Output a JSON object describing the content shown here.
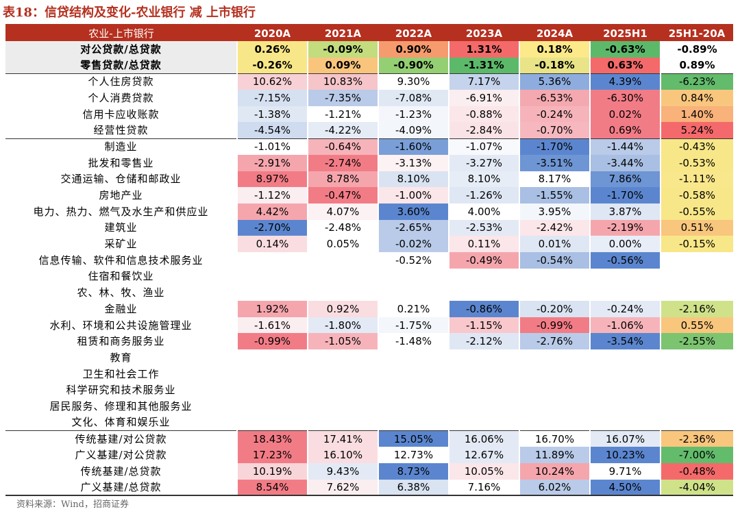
{
  "title": "表18：信贷结构及变化-农业银行 减 上市银行",
  "header": [
    "农业-上市银行",
    "2020A",
    "2021A",
    "2022A",
    "2023A",
    "2024A",
    "2025H1",
    "25H1-20A"
  ],
  "rows": [
    {
      "label": "对公贷款/总贷款",
      "bold": true,
      "gray": true,
      "sep": false,
      "values": [
        "0.26%",
        "-0.09%",
        "0.90%",
        "1.31%",
        "0.18%",
        "-0.63%",
        "-0.89%"
      ],
      "colors": [
        "#f8e788",
        "#c2dc7e",
        "#f69b6e",
        "#f46a6a",
        "#fbe98a",
        "#5db96a",
        "#ffffff"
      ]
    },
    {
      "label": "零售贷款/总贷款",
      "bold": true,
      "gray": true,
      "sep": false,
      "values": [
        "-0.26%",
        "0.09%",
        "-0.90%",
        "-1.31%",
        "-0.18%",
        "0.63%",
        "0.89%"
      ],
      "colors": [
        "#f8e788",
        "#f9c57d",
        "#94cf73",
        "#5db96a",
        "#e8e487",
        "#f46a6a",
        "#ffffff"
      ]
    },
    {
      "label": "个人住房贷款",
      "bold": false,
      "gray": false,
      "sep": true,
      "values": [
        "10.62%",
        "10.83%",
        "9.30%",
        "7.17%",
        "5.36%",
        "4.39%",
        "-6.23%"
      ],
      "colors": [
        "#f7d1d6",
        "#f5c5ca",
        "#ffffff",
        "#c5d4ec",
        "#8eadde",
        "#5b86cf",
        "#63bb6c"
      ]
    },
    {
      "label": "个人消费贷款",
      "bold": false,
      "gray": false,
      "sep": false,
      "values": [
        "-7.15%",
        "-7.35%",
        "-7.08%",
        "-6.91%",
        "-6.53%",
        "-6.30%",
        "0.84%"
      ],
      "colors": [
        "#d5e0f1",
        "#b9cbe8",
        "#e0e8f4",
        "#fbeef0",
        "#f4a9b0",
        "#f27c86",
        "#f9c67e"
      ]
    },
    {
      "label": "信用卡应收账款",
      "bold": false,
      "gray": false,
      "sep": false,
      "values": [
        "-1.38%",
        "-1.21%",
        "-1.23%",
        "-0.88%",
        "-0.24%",
        "0.02%",
        "1.40%"
      ],
      "colors": [
        "#e0e8f4",
        "#ffffff",
        "#f4f6fb",
        "#fbe6e9",
        "#f6b4ba",
        "#f27c86",
        "#f8b27a"
      ]
    },
    {
      "label": "经营性贷款",
      "bold": false,
      "gray": false,
      "sep": false,
      "values": [
        "-4.54%",
        "-4.22%",
        "-4.09%",
        "-2.84%",
        "-0.70%",
        "0.69%",
        "5.24%"
      ],
      "colors": [
        "#cfdbef",
        "#e5ecf6",
        "#f3f6fb",
        "#fae3e6",
        "#f6b8be",
        "#f27c86",
        "#f4696b"
      ]
    },
    {
      "label": "制造业",
      "bold": false,
      "gray": false,
      "sep": true,
      "values": [
        "-1.01%",
        "-0.64%",
        "-1.60%",
        "-1.07%",
        "-1.70%",
        "-1.44%",
        "-0.43%"
      ],
      "colors": [
        "#ffffff",
        "#f6b4ba",
        "#7a9fd8",
        "#f8f9fc",
        "#5b86cf",
        "#b9cbe8",
        "#f8e788"
      ]
    },
    {
      "label": "批发和零售业",
      "bold": false,
      "gray": false,
      "sep": false,
      "values": [
        "-2.91%",
        "-2.74%",
        "-3.13%",
        "-3.27%",
        "-3.51%",
        "-3.44%",
        "-0.53%"
      ],
      "colors": [
        "#f5a6ad",
        "#f27c86",
        "#fcf1f3",
        "#e3eaf5",
        "#6e95d4",
        "#a9bfe3",
        "#f8e788"
      ]
    },
    {
      "label": "交通运输、仓储和邮政业",
      "bold": false,
      "gray": false,
      "sep": false,
      "values": [
        "8.97%",
        "8.78%",
        "8.10%",
        "8.10%",
        "8.17%",
        "7.86%",
        "-1.11%"
      ],
      "colors": [
        "#f27c86",
        "#f5a6ad",
        "#d9e3f2",
        "#e6edf6",
        "#ffffff",
        "#6e95d4",
        "#f9e78c"
      ]
    },
    {
      "label": "房地产业",
      "bold": false,
      "gray": false,
      "sep": false,
      "values": [
        "-1.12%",
        "-0.47%",
        "-1.00%",
        "-1.26%",
        "-1.55%",
        "-1.70%",
        "-0.58%"
      ],
      "colors": [
        "#fbeef0",
        "#f27c86",
        "#fbe6e9",
        "#dfe7f4",
        "#a9bfe3",
        "#5b86cf",
        "#f8e788"
      ]
    },
    {
      "label": "电力、热力、燃气及水生产和供应业",
      "bold": false,
      "gray": false,
      "sep": false,
      "values": [
        "4.42%",
        "4.07%",
        "3.60%",
        "4.00%",
        "3.95%",
        "3.87%",
        "-0.55%"
      ],
      "colors": [
        "#f5a6ad",
        "#fcf1f3",
        "#5b86cf",
        "#ffffff",
        "#f3f6fb",
        "#dfe7f4",
        "#f8e788"
      ]
    },
    {
      "label": "建筑业",
      "bold": false,
      "gray": false,
      "sep": false,
      "values": [
        "-2.70%",
        "-2.48%",
        "-2.65%",
        "-2.53%",
        "-2.42%",
        "-2.19%",
        "0.51%"
      ],
      "colors": [
        "#5b86cf",
        "#ffffff",
        "#b9cbe8",
        "#e3eaf5",
        "#fbe6e9",
        "#f5a6ad",
        "#f9c67e"
      ]
    },
    {
      "label": "采矿业",
      "bold": false,
      "gray": false,
      "sep": false,
      "values": [
        "0.14%",
        "0.05%",
        "-0.02%",
        "0.11%",
        "0.01%",
        "0.00%",
        "-0.15%"
      ],
      "colors": [
        "#f9dde1",
        "#ffffff",
        "#b9cbe8",
        "#fbe6e9",
        "#dfe7f4",
        "#e8eef7",
        "#f8e788"
      ]
    },
    {
      "label": "信息传输、软件和信息技术服务业",
      "bold": false,
      "gray": false,
      "sep": false,
      "values": [
        "",
        "",
        "-0.52%",
        "-0.49%",
        "-0.54%",
        "-0.56%",
        ""
      ],
      "colors": [
        "#ffffff",
        "#ffffff",
        "#ffffff",
        "#f5a6ad",
        "#a9bfe3",
        "#5b86cf",
        "#ffffff"
      ]
    },
    {
      "label": "住宿和餐饮业",
      "bold": false,
      "gray": false,
      "sep": false,
      "values": [
        "",
        "",
        "",
        "",
        "",
        "",
        ""
      ],
      "colors": [
        "#ffffff",
        "#ffffff",
        "#ffffff",
        "#ffffff",
        "#ffffff",
        "#ffffff",
        "#ffffff"
      ]
    },
    {
      "label": "农、林、牧、渔业",
      "bold": false,
      "gray": false,
      "sep": false,
      "values": [
        "",
        "",
        "",
        "",
        "",
        "",
        ""
      ],
      "colors": [
        "#ffffff",
        "#ffffff",
        "#ffffff",
        "#ffffff",
        "#ffffff",
        "#ffffff",
        "#ffffff"
      ]
    },
    {
      "label": "金融业",
      "bold": false,
      "gray": false,
      "sep": false,
      "values": [
        "1.92%",
        "0.92%",
        "0.21%",
        "-0.86%",
        "-0.20%",
        "-0.24%",
        "-2.16%"
      ],
      "colors": [
        "#f5a6ad",
        "#f9dde1",
        "#ffffff",
        "#5b86cf",
        "#d9e3f2",
        "#e3eaf5",
        "#cfe28a"
      ]
    },
    {
      "label": "水利、环境和公共设施管理业",
      "bold": false,
      "gray": false,
      "sep": false,
      "values": [
        "-1.61%",
        "-1.80%",
        "-1.75%",
        "-1.15%",
        "-0.99%",
        "-1.06%",
        "0.55%"
      ],
      "colors": [
        "#fbeef0",
        "#e3eaf5",
        "#f3f6fb",
        "#f9c8cd",
        "#f27c86",
        "#f6b4ba",
        "#f9c67e"
      ]
    },
    {
      "label": "租赁和商务服务业",
      "bold": false,
      "gray": false,
      "sep": false,
      "values": [
        "-0.99%",
        "-1.05%",
        "-1.48%",
        "-2.12%",
        "-2.76%",
        "-3.54%",
        "-2.55%"
      ],
      "colors": [
        "#f27c86",
        "#f6b4ba",
        "#ffffff",
        "#dfe7f4",
        "#b9cbe8",
        "#5b86cf",
        "#7cc470"
      ]
    },
    {
      "label": "教育",
      "bold": false,
      "gray": false,
      "sep": false,
      "values": [
        "",
        "",
        "",
        "",
        "",
        "",
        ""
      ],
      "colors": [
        "#ffffff",
        "#ffffff",
        "#ffffff",
        "#ffffff",
        "#ffffff",
        "#ffffff",
        "#ffffff"
      ]
    },
    {
      "label": "卫生和社会工作",
      "bold": false,
      "gray": false,
      "sep": false,
      "values": [
        "",
        "",
        "",
        "",
        "",
        "",
        ""
      ],
      "colors": [
        "#ffffff",
        "#ffffff",
        "#ffffff",
        "#ffffff",
        "#ffffff",
        "#ffffff",
        "#ffffff"
      ]
    },
    {
      "label": "科学研究和技术服务业",
      "bold": false,
      "gray": false,
      "sep": false,
      "values": [
        "",
        "",
        "",
        "",
        "",
        "",
        ""
      ],
      "colors": [
        "#ffffff",
        "#ffffff",
        "#ffffff",
        "#ffffff",
        "#ffffff",
        "#ffffff",
        "#ffffff"
      ]
    },
    {
      "label": "居民服务、修理和其他服务业",
      "bold": false,
      "gray": false,
      "sep": false,
      "values": [
        "",
        "",
        "",
        "",
        "",
        "",
        ""
      ],
      "colors": [
        "#ffffff",
        "#ffffff",
        "#ffffff",
        "#ffffff",
        "#ffffff",
        "#ffffff",
        "#ffffff"
      ]
    },
    {
      "label": "文化、体育和娱乐业",
      "bold": false,
      "gray": false,
      "sep": false,
      "values": [
        "",
        "",
        "",
        "",
        "",
        "",
        ""
      ],
      "colors": [
        "#ffffff",
        "#ffffff",
        "#ffffff",
        "#ffffff",
        "#ffffff",
        "#ffffff",
        "#ffffff"
      ]
    },
    {
      "label": "传统基建/对公贷款",
      "bold": false,
      "gray": false,
      "sep": true,
      "values": [
        "18.43%",
        "17.41%",
        "15.05%",
        "16.06%",
        "16.70%",
        "16.07%",
        "-2.36%"
      ],
      "colors": [
        "#f27c86",
        "#f9dde1",
        "#5b86cf",
        "#e3eaf5",
        "#ffffff",
        "#e3eaf5",
        "#f9c67e"
      ]
    },
    {
      "label": "广义基建/对公贷款",
      "bold": false,
      "gray": false,
      "sep": false,
      "values": [
        "17.23%",
        "16.10%",
        "12.73%",
        "12.67%",
        "11.89%",
        "10.23%",
        "-7.00%"
      ],
      "colors": [
        "#f27c86",
        "#f9dde1",
        "#ffffff",
        "#e3eaf5",
        "#b9cbe8",
        "#5b86cf",
        "#63bb6c"
      ]
    },
    {
      "label": "传统基建/总贷款",
      "bold": false,
      "gray": false,
      "sep": false,
      "values": [
        "10.19%",
        "9.43%",
        "8.73%",
        "10.05%",
        "10.24%",
        "9.71%",
        "-0.48%"
      ],
      "colors": [
        "#f8d5d9",
        "#e3eaf5",
        "#5b86cf",
        "#fbe6e9",
        "#f5a6ad",
        "#ffffff",
        "#f46a6a"
      ]
    },
    {
      "label": "广义基建/总贷款",
      "bold": false,
      "gray": false,
      "sep": false,
      "values": [
        "8.54%",
        "7.62%",
        "6.38%",
        "7.16%",
        "6.02%",
        "4.50%",
        "-4.04%"
      ],
      "colors": [
        "#f27c86",
        "#fbeef0",
        "#d9e3f2",
        "#ffffff",
        "#b9cbe8",
        "#5b86cf",
        "#cfe28a"
      ]
    }
  ],
  "source": "资料来源：Wind，招商证券"
}
